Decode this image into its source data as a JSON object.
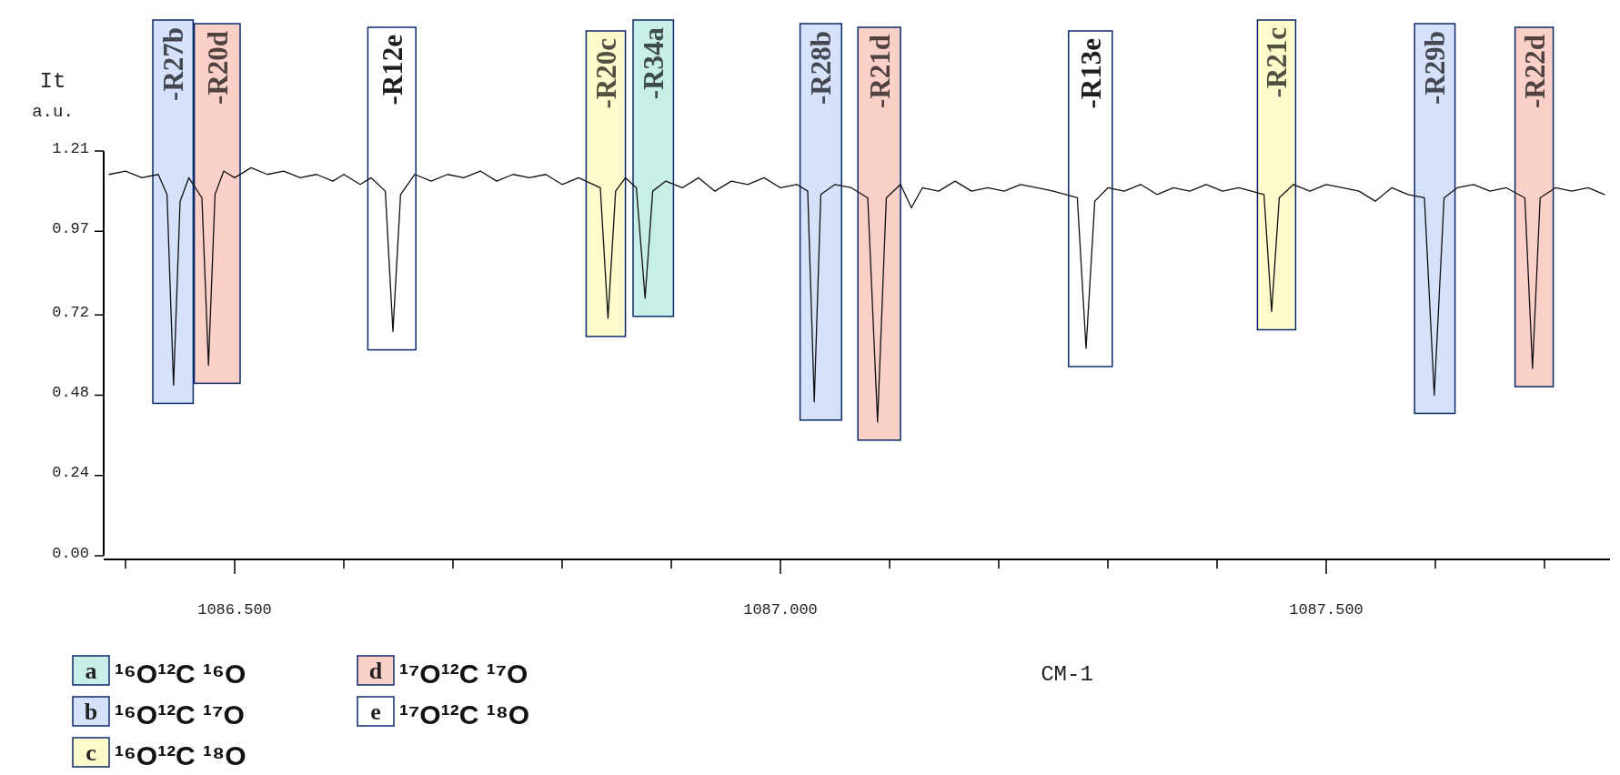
{
  "chart_data": {
    "type": "line",
    "xlabel": "CM-1",
    "ylabel": "It a.u.",
    "xlim": [
      1086.38,
      1087.76
    ],
    "ylim": [
      0,
      1.21
    ],
    "xticks": [
      {
        "value": 1086.4,
        "label": null
      },
      {
        "value": 1086.5,
        "label": "1086.500"
      },
      {
        "value": 1086.6,
        "label": null
      },
      {
        "value": 1086.7,
        "label": null
      },
      {
        "value": 1086.8,
        "label": null
      },
      {
        "value": 1086.9,
        "label": null
      },
      {
        "value": 1087.0,
        "label": "1087.000"
      },
      {
        "value": 1087.1,
        "label": null
      },
      {
        "value": 1087.2,
        "label": null
      },
      {
        "value": 1087.3,
        "label": null
      },
      {
        "value": 1087.4,
        "label": null
      },
      {
        "value": 1087.5,
        "label": "1087.500"
      },
      {
        "value": 1087.6,
        "label": null
      },
      {
        "value": 1087.7,
        "label": null
      }
    ],
    "yticks": [
      {
        "value": 0,
        "label": "0.00"
      },
      0.24,
      0.48,
      0.72,
      0.97,
      1.21
    ],
    "grid": false,
    "marker": "none",
    "line_style": "solid",
    "series": [
      {
        "color": "#111111",
        "x": [
          1086.385,
          1086.4,
          1086.415,
          1086.43,
          1086.438,
          1086.444,
          1086.45,
          1086.458,
          1086.47,
          1086.476,
          1086.482,
          1086.49,
          1086.5,
          1086.515,
          1086.53,
          1086.545,
          1086.56,
          1086.575,
          1086.59,
          1086.6,
          1086.615,
          1086.625,
          1086.638,
          1086.645,
          1086.652,
          1086.665,
          1086.68,
          1086.695,
          1086.71,
          1086.725,
          1086.74,
          1086.755,
          1086.77,
          1086.785,
          1086.8,
          1086.815,
          1086.835,
          1086.842,
          1086.849,
          1086.858,
          1086.868,
          1086.876,
          1086.883,
          1086.895,
          1086.91,
          1086.925,
          1086.94,
          1086.955,
          1086.97,
          1086.985,
          1087.0,
          1087.015,
          1087.025,
          1087.031,
          1087.037,
          1087.05,
          1087.065,
          1087.08,
          1087.089,
          1087.097,
          1087.11,
          1087.12,
          1087.13,
          1087.145,
          1087.16,
          1087.175,
          1087.19,
          1087.205,
          1087.22,
          1087.235,
          1087.25,
          1087.272,
          1087.28,
          1087.288,
          1087.3,
          1087.315,
          1087.33,
          1087.345,
          1087.36,
          1087.375,
          1087.39,
          1087.405,
          1087.42,
          1087.443,
          1087.45,
          1087.457,
          1087.47,
          1087.485,
          1087.5,
          1087.515,
          1087.53,
          1087.545,
          1087.56,
          1087.575,
          1087.59,
          1087.599,
          1087.608,
          1087.62,
          1087.635,
          1087.65,
          1087.665,
          1087.682,
          1087.689,
          1087.696,
          1087.71,
          1087.725,
          1087.74,
          1087.755
        ],
        "values": [
          1.14,
          1.15,
          1.13,
          1.14,
          1.08,
          0.51,
          1.06,
          1.13,
          1.07,
          0.57,
          1.08,
          1.15,
          1.13,
          1.16,
          1.14,
          1.15,
          1.13,
          1.14,
          1.12,
          1.14,
          1.11,
          1.13,
          1.09,
          0.67,
          1.08,
          1.14,
          1.12,
          1.14,
          1.13,
          1.15,
          1.12,
          1.14,
          1.13,
          1.14,
          1.11,
          1.13,
          1.1,
          0.71,
          1.09,
          1.13,
          1.1,
          0.77,
          1.09,
          1.12,
          1.1,
          1.13,
          1.09,
          1.12,
          1.11,
          1.13,
          1.1,
          1.11,
          1.09,
          0.46,
          1.08,
          1.11,
          1.1,
          1.07,
          0.4,
          1.07,
          1.11,
          1.04,
          1.1,
          1.09,
          1.12,
          1.09,
          1.1,
          1.09,
          1.11,
          1.1,
          1.09,
          1.07,
          0.62,
          1.06,
          1.1,
          1.09,
          1.11,
          1.08,
          1.1,
          1.09,
          1.11,
          1.09,
          1.1,
          1.08,
          0.73,
          1.07,
          1.11,
          1.09,
          1.11,
          1.1,
          1.09,
          1.06,
          1.1,
          1.08,
          1.07,
          0.48,
          1.07,
          1.1,
          1.11,
          1.09,
          1.1,
          1.07,
          0.56,
          1.07,
          1.1,
          1.09,
          1.1,
          1.08
        ]
      }
    ],
    "bands": [
      {
        "axis": "x",
        "from": 1086.425,
        "to": 1086.462,
        "label": "-R27b",
        "color": "#d6e2fb"
      },
      {
        "axis": "x",
        "from": 1086.463,
        "to": 1086.505,
        "label": "-R20d",
        "color": "#fbd0c8"
      },
      {
        "axis": "x",
        "from": 1086.622,
        "to": 1086.666,
        "label": "-R12e",
        "color": "#ffffff"
      },
      {
        "axis": "x",
        "from": 1086.822,
        "to": 1086.858,
        "label": "-R20c",
        "color": "#fdfbcc"
      },
      {
        "axis": "x",
        "from": 1086.865,
        "to": 1086.902,
        "label": "-R34a",
        "color": "#c8eee8"
      },
      {
        "axis": "x",
        "from": 1087.018,
        "to": 1087.056,
        "label": "-R28b",
        "color": "#d6e2fb"
      },
      {
        "axis": "x",
        "from": 1087.071,
        "to": 1087.11,
        "label": "-R21d",
        "color": "#fbd0c8"
      },
      {
        "axis": "x",
        "from": 1087.264,
        "to": 1087.304,
        "label": "-R13e",
        "color": "#ffffff"
      },
      {
        "axis": "x",
        "from": 1087.437,
        "to": 1087.472,
        "label": "-R21c",
        "color": "#fdfbcc"
      },
      {
        "axis": "x",
        "from": 1087.581,
        "to": 1087.618,
        "label": "-R29b",
        "color": "#d6e2fb"
      },
      {
        "axis": "x",
        "from": 1087.673,
        "to": 1087.708,
        "label": "-R22d",
        "color": "#fbd0c8"
      }
    ],
    "annotations": [
      "a ¹⁶O¹²C ¹⁶O",
      "b ¹⁶O¹²C ¹⁷O",
      "c ¹⁶O¹²C ¹⁸O",
      "d ¹⁷O¹²C ¹⁷O",
      "e ¹⁷O¹²C ¹⁸O"
    ]
  }
}
